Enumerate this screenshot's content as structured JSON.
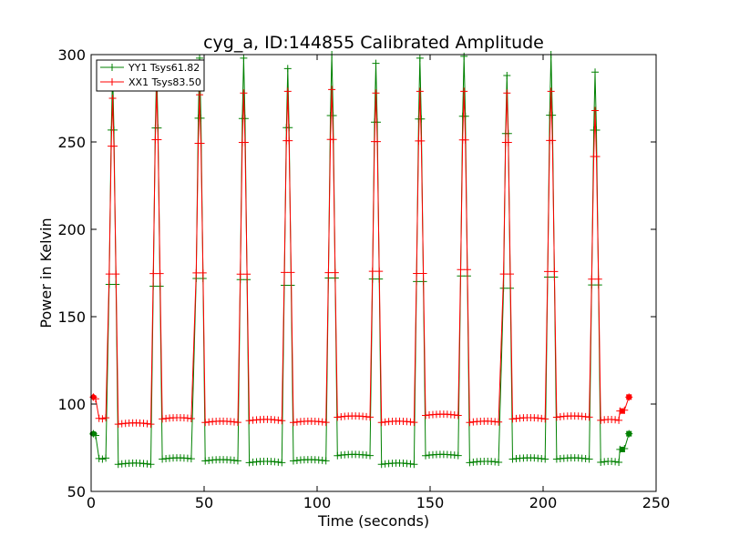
{
  "chart_data": {
    "type": "line",
    "title": "cyg_a, ID:144855 Calibrated Amplitude",
    "xlabel": "Time (seconds)",
    "ylabel": "Power in Kelvin",
    "xlim": [
      0,
      250
    ],
    "ylim": [
      50,
      300
    ],
    "xticks": [
      "0",
      "50",
      "100",
      "150",
      "200",
      "250"
    ],
    "yticks": [
      "50",
      "100",
      "150",
      "200",
      "250",
      "300"
    ],
    "legend_position": "top-left",
    "peaks": [
      9.5,
      29,
      48,
      67.5,
      87,
      106.5,
      126,
      145.5,
      165,
      184,
      203.5,
      223
    ],
    "series": [
      {
        "name": "YY1 Tsys61.82",
        "color": "#008000",
        "start_value": 83,
        "end_value": 83,
        "peak_values": [
          290,
          292,
          298,
          298,
          292,
          300,
          295,
          298,
          299,
          288,
          300,
          290
        ],
        "baseline_segments": [
          69,
          65,
          68,
          67,
          66,
          67,
          70,
          65,
          70,
          66,
          68,
          68,
          66,
          74
        ]
      },
      {
        "name": "XX1 Tsys83.50",
        "color": "#ff0000",
        "start_value": 104,
        "end_value": 104,
        "peak_values": [
          275,
          280,
          277,
          278,
          279,
          280,
          278,
          279,
          279,
          278,
          279,
          268
        ],
        "baseline_segments": [
          92,
          88,
          91,
          89,
          90,
          89,
          92,
          89,
          93,
          89,
          91,
          92,
          90,
          96
        ]
      }
    ]
  }
}
